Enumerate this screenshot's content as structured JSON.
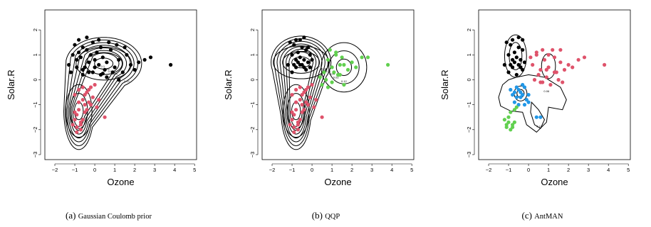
{
  "colors": {
    "cluster1": "#000000",
    "cluster2": "#DF536B",
    "cluster3": "#61D04F",
    "cluster4": "#2297E6"
  },
  "chart_data": [
    {
      "type": "scatter",
      "caption_tag": "(a)",
      "caption_name": "Gaussian Coulomb prior",
      "xlabel": "Ozone",
      "ylabel": "Solar.R",
      "xlim": [
        -2.5,
        5.1
      ],
      "ylim": [
        -3.2,
        2.8
      ],
      "xticks": [
        -2,
        -1,
        0,
        1,
        2,
        3,
        4,
        5
      ],
      "yticks": [
        -3,
        -2,
        -1,
        0,
        1,
        2
      ],
      "contour_levels": [
        "0.02",
        "0.04",
        "0.06",
        "0.08",
        "0.1",
        "0.12"
      ],
      "contours": [
        {
          "cx": 0.55,
          "cy": 0.7,
          "rx": 1.8,
          "ry": 1.0,
          "cx2": -0.75,
          "cy2": -1.2,
          "rx2": 0.7,
          "ry2": 1.6
        }
      ],
      "series": [
        {
          "color_key": "cluster1",
          "x": [
            -1.3,
            -1.1,
            -1.0,
            -0.9,
            -0.8,
            -0.7,
            -0.6,
            -0.5,
            -0.4,
            -0.3,
            -0.2,
            -0.1,
            0.0,
            0.1,
            0.2,
            0.3,
            0.4,
            0.5,
            0.6,
            0.8,
            1.0,
            1.2,
            1.4,
            1.6,
            1.8,
            2.0,
            2.2,
            2.5,
            2.8,
            3.8,
            -1.2,
            -0.9,
            -0.6,
            -0.3,
            0.0,
            0.3,
            0.6,
            0.9,
            1.2,
            -0.8,
            -0.4,
            0.2,
            0.7,
            1.1,
            1.5,
            -0.6,
            -0.1,
            0.4
          ],
          "y": [
            0.6,
            1.0,
            1.4,
            0.8,
            1.1,
            0.9,
            1.3,
            0.5,
            1.2,
            0.7,
            1.0,
            1.5,
            0.8,
            1.1,
            0.6,
            1.3,
            0.9,
            0.4,
            0.7,
            1.2,
            0.5,
            0.8,
            0.3,
            1.0,
            0.6,
            0.4,
            0.7,
            0.8,
            0.9,
            0.6,
            0.3,
            0.5,
            0.4,
            0.3,
            0.5,
            0.2,
            0.1,
            0.3,
            0.0,
            1.6,
            1.7,
            1.6,
            1.5,
            1.4,
            1.3,
            0.2,
            0.3,
            0.25
          ]
        },
        {
          "color_key": "cluster2",
          "x": [
            -1.0,
            -0.9,
            -0.8,
            -0.7,
            -0.6,
            -0.5,
            -0.4,
            -0.3,
            -0.2,
            -0.1,
            0.0,
            0.2,
            0.5,
            -1.1,
            -0.9,
            -0.7,
            -0.5,
            -0.3,
            -1.0,
            -0.8,
            -0.6,
            -0.4,
            -0.9,
            -0.7,
            -0.5,
            -1.0,
            -0.8,
            -0.6,
            0.1,
            -0.2
          ],
          "y": [
            -1.6,
            -1.9,
            -1.2,
            -2.0,
            -0.8,
            -1.3,
            -0.5,
            -0.9,
            -0.3,
            -0.7,
            -0.2,
            -0.8,
            -1.5,
            -1.8,
            -1.4,
            -1.7,
            -1.0,
            -0.4,
            -0.6,
            -0.9,
            -1.6,
            -1.2,
            -2.1,
            -1.8,
            -0.6,
            -1.3,
            -0.4,
            -0.3,
            -1.1,
            -1.0
          ]
        }
      ]
    },
    {
      "type": "scatter",
      "caption_tag": "(b)",
      "caption_name": "QQP",
      "xlabel": "Ozone",
      "ylabel": "Solar.R",
      "xlim": [
        -2.5,
        5.1
      ],
      "ylim": [
        -3.2,
        2.8
      ],
      "xticks": [
        -2,
        -1,
        0,
        1,
        2,
        3,
        4,
        5
      ],
      "yticks": [
        -3,
        -2,
        -1,
        0,
        1,
        2
      ],
      "contour_levels": [
        "0.02",
        "0.04",
        "0.06",
        "0.08",
        "0.1",
        "0.12"
      ],
      "series": [
        {
          "color_key": "cluster1",
          "x": [
            -1.2,
            -1.0,
            -0.9,
            -0.8,
            -0.7,
            -0.6,
            -0.5,
            -0.4,
            -0.3,
            -0.2,
            -0.1,
            0.0,
            -1.1,
            -0.9,
            -0.7,
            -0.5,
            -0.3,
            -0.1,
            -1.0,
            -0.8,
            -0.6,
            -0.4,
            -0.2,
            -0.6,
            -0.4,
            -0.8
          ],
          "y": [
            0.6,
            1.0,
            1.4,
            0.8,
            1.1,
            0.9,
            1.3,
            0.5,
            1.2,
            0.7,
            1.0,
            0.8,
            1.5,
            0.6,
            0.7,
            0.6,
            0.4,
            0.5,
            0.3,
            0.5,
            0.6,
            0.8,
            1.3,
            1.6,
            1.7,
            1.6
          ]
        },
        {
          "color_key": "cluster3",
          "x": [
            0.6,
            0.8,
            1.0,
            1.2,
            1.4,
            1.6,
            1.8,
            2.0,
            2.2,
            2.5,
            2.8,
            3.8,
            0.4,
            0.7,
            1.0,
            1.3,
            1.6,
            0.9,
            1.2,
            1.5,
            0.5,
            0.8,
            1.1,
            1.4
          ],
          "y": [
            0.3,
            0.8,
            0.5,
            1.0,
            0.2,
            0.6,
            0.4,
            0.7,
            0.5,
            0.9,
            0.9,
            0.6,
            0.1,
            0.0,
            -0.1,
            0.2,
            -0.2,
            1.2,
            1.1,
            0.9,
            -0.2,
            -0.3,
            0.3,
            0.6
          ]
        },
        {
          "color_key": "cluster2",
          "x": [
            -1.0,
            -0.9,
            -0.8,
            -0.7,
            -0.6,
            -0.5,
            -0.4,
            -0.3,
            -0.2,
            -0.1,
            0.0,
            0.2,
            0.5,
            -1.1,
            -0.9,
            -0.7,
            -0.5,
            -0.3,
            -1.0,
            -0.8,
            -0.6,
            -0.4,
            -0.9,
            -0.7,
            -0.5,
            -1.0,
            -0.8,
            -0.6,
            0.1,
            -0.2
          ],
          "y": [
            -1.6,
            -1.9,
            -1.2,
            -2.0,
            -0.8,
            -1.3,
            -0.5,
            -0.9,
            -0.3,
            -0.7,
            -0.2,
            -0.8,
            -1.5,
            -1.8,
            -1.4,
            -1.7,
            -1.0,
            -0.4,
            -0.6,
            -0.9,
            -1.6,
            -1.2,
            -2.1,
            -1.8,
            -0.6,
            -1.3,
            -0.4,
            -0.3,
            -1.1,
            -1.0
          ]
        }
      ]
    },
    {
      "type": "scatter",
      "caption_tag": "(c)",
      "caption_name": "AntMAN",
      "xlabel": "Ozone",
      "ylabel": "Solar.R",
      "xlim": [
        -2.5,
        5.1
      ],
      "ylim": [
        -3.2,
        2.8
      ],
      "xticks": [
        -2,
        -1,
        0,
        1,
        2,
        3,
        4,
        5
      ],
      "yticks": [
        -3,
        -2,
        -1,
        0,
        1,
        2
      ],
      "contour_levels": [
        "0.06",
        "0.1",
        "0.2",
        "0.3"
      ],
      "series": [
        {
          "color_key": "cluster1",
          "x": [
            -1.2,
            -1.0,
            -0.9,
            -0.8,
            -0.7,
            -0.6,
            -0.5,
            -0.4,
            -0.3,
            -0.2,
            -1.1,
            -0.9,
            -0.7,
            -0.5,
            -0.3,
            -1.0,
            -0.8,
            -0.6,
            -0.4,
            -0.8,
            -0.5,
            -0.3
          ],
          "y": [
            0.6,
            1.0,
            1.4,
            0.8,
            1.1,
            0.9,
            1.3,
            0.5,
            1.2,
            0.7,
            1.5,
            0.6,
            0.7,
            0.6,
            0.4,
            0.3,
            0.5,
            0.2,
            0.8,
            1.6,
            1.7,
            1.6
          ]
        },
        {
          "color_key": "cluster2",
          "x": [
            0.2,
            0.4,
            0.6,
            0.8,
            1.0,
            1.2,
            1.4,
            1.6,
            1.8,
            2.0,
            2.2,
            2.5,
            2.8,
            3.8,
            0.3,
            0.5,
            0.7,
            0.9,
            1.1,
            1.3,
            1.5,
            1.7,
            0.1,
            0.4,
            0.7,
            1.0,
            1.3,
            1.6,
            0.6,
            0.9
          ],
          "y": [
            0.6,
            1.0,
            0.4,
            0.8,
            0.5,
            1.2,
            0.3,
            0.7,
            0.4,
            0.6,
            0.5,
            0.8,
            0.9,
            0.6,
            0.0,
            0.2,
            -0.1,
            0.1,
            -0.2,
            0.3,
            0.0,
            -0.1,
            0.9,
            1.1,
            1.2,
            1.0,
            0.9,
            1.2,
            -0.1,
            0.4
          ]
        },
        {
          "color_key": "cluster4",
          "x": [
            -0.9,
            -0.8,
            -0.7,
            -0.6,
            -0.5,
            -0.4,
            -0.3,
            -0.2,
            -0.1,
            0.0,
            -0.7,
            -0.5,
            -0.3,
            -0.6,
            -0.4,
            0.4,
            0.6,
            -0.2,
            0.0
          ],
          "y": [
            -0.4,
            -0.6,
            -0.5,
            -0.7,
            -0.4,
            -0.5,
            -0.6,
            -0.3,
            -0.8,
            -0.9,
            -0.9,
            -1.0,
            -0.2,
            -0.3,
            -0.7,
            -1.5,
            -1.5,
            -1.0,
            -0.6
          ]
        },
        {
          "color_key": "cluster3",
          "x": [
            -1.2,
            -1.1,
            -1.0,
            -0.9,
            -0.8,
            -0.7,
            -1.0,
            -0.9,
            -0.8,
            -1.1,
            -0.6,
            -0.7
          ],
          "y": [
            -1.6,
            -1.9,
            -1.7,
            -2.0,
            -1.8,
            -1.7,
            -1.5,
            -1.3,
            -1.9,
            -1.8,
            -1.1,
            -1.2
          ]
        }
      ]
    }
  ]
}
